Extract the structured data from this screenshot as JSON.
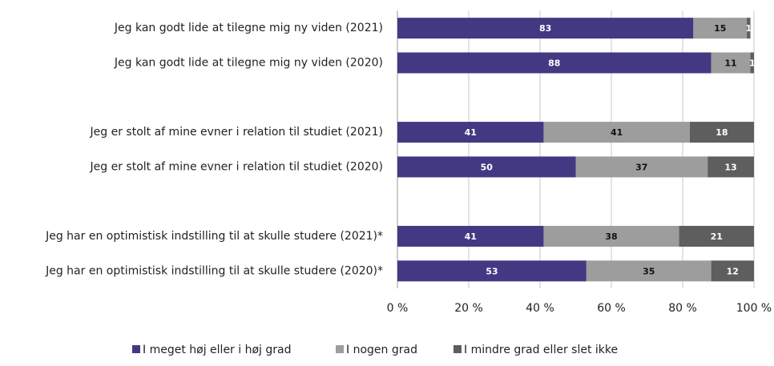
{
  "chart_data": {
    "type": "stacked_barh",
    "categories": [
      "Jeg kan godt lide at tilegne mig ny viden (2021)",
      "Jeg kan godt lide at tilegne mig ny viden (2020)",
      null,
      "Jeg er stolt af mine evner i relation til studiet (2021)",
      "Jeg er stolt af mine evner i relation til studiet (2020)",
      null,
      "Jeg har en optimistisk indstilling til at skulle studere (2021)*",
      "Jeg har en optimistisk indstilling til at skulle studere (2020)*"
    ],
    "series": [
      {
        "name": "I meget høj eller i høj grad",
        "color": "#433983",
        "values": [
          83,
          88,
          null,
          41,
          50,
          null,
          41,
          53
        ]
      },
      {
        "name": "I nogen grad",
        "color": "#9d9d9d",
        "values": [
          15,
          11,
          null,
          41,
          37,
          null,
          38,
          35
        ]
      },
      {
        "name": "I mindre grad eller slet ikke",
        "color": "#5e5e5e",
        "values": [
          1,
          1,
          null,
          18,
          13,
          null,
          21,
          12
        ]
      }
    ],
    "xlim": [
      0,
      100
    ],
    "xticks": [
      {
        "value": 0,
        "label": "0 %"
      },
      {
        "value": 20,
        "label": "20 %"
      },
      {
        "value": 40,
        "label": "40 %"
      },
      {
        "value": 60,
        "label": "60 %"
      },
      {
        "value": 80,
        "label": "80 %"
      },
      {
        "value": 100,
        "label": "100 %"
      }
    ],
    "grid": true,
    "legend": "bottom"
  }
}
